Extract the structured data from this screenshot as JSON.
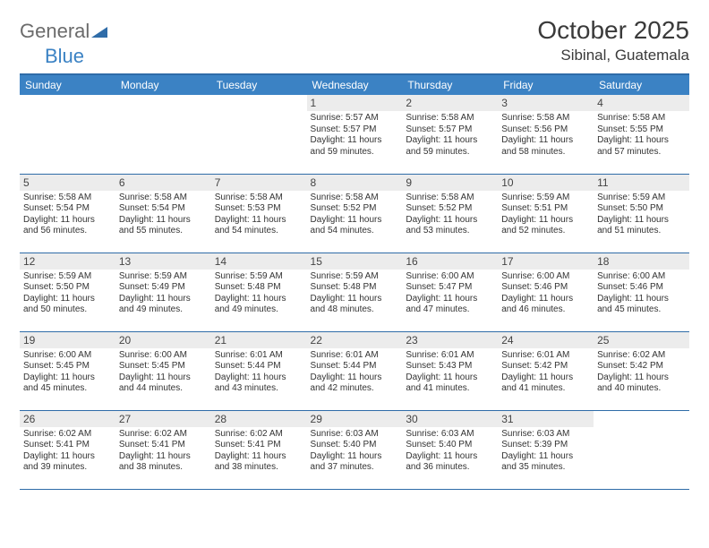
{
  "brand": {
    "part1": "General",
    "part2": "Blue"
  },
  "title": "October 2025",
  "location": "Sibinal, Guatemala",
  "colors": {
    "header_bg": "#3b82c4",
    "header_text": "#ffffff",
    "row_border": "#2f6ca8",
    "daynum_bg": "#ececec",
    "logo_gray": "#6b6b6b",
    "logo_blue": "#3b82c4"
  },
  "weekdays": [
    "Sunday",
    "Monday",
    "Tuesday",
    "Wednesday",
    "Thursday",
    "Friday",
    "Saturday"
  ],
  "weeks": [
    [
      {
        "n": "",
        "sr": "",
        "ss": "",
        "dl": ""
      },
      {
        "n": "",
        "sr": "",
        "ss": "",
        "dl": ""
      },
      {
        "n": "",
        "sr": "",
        "ss": "",
        "dl": ""
      },
      {
        "n": "1",
        "sr": "Sunrise: 5:57 AM",
        "ss": "Sunset: 5:57 PM",
        "dl": "Daylight: 11 hours and 59 minutes."
      },
      {
        "n": "2",
        "sr": "Sunrise: 5:58 AM",
        "ss": "Sunset: 5:57 PM",
        "dl": "Daylight: 11 hours and 59 minutes."
      },
      {
        "n": "3",
        "sr": "Sunrise: 5:58 AM",
        "ss": "Sunset: 5:56 PM",
        "dl": "Daylight: 11 hours and 58 minutes."
      },
      {
        "n": "4",
        "sr": "Sunrise: 5:58 AM",
        "ss": "Sunset: 5:55 PM",
        "dl": "Daylight: 11 hours and 57 minutes."
      }
    ],
    [
      {
        "n": "5",
        "sr": "Sunrise: 5:58 AM",
        "ss": "Sunset: 5:54 PM",
        "dl": "Daylight: 11 hours and 56 minutes."
      },
      {
        "n": "6",
        "sr": "Sunrise: 5:58 AM",
        "ss": "Sunset: 5:54 PM",
        "dl": "Daylight: 11 hours and 55 minutes."
      },
      {
        "n": "7",
        "sr": "Sunrise: 5:58 AM",
        "ss": "Sunset: 5:53 PM",
        "dl": "Daylight: 11 hours and 54 minutes."
      },
      {
        "n": "8",
        "sr": "Sunrise: 5:58 AM",
        "ss": "Sunset: 5:52 PM",
        "dl": "Daylight: 11 hours and 54 minutes."
      },
      {
        "n": "9",
        "sr": "Sunrise: 5:58 AM",
        "ss": "Sunset: 5:52 PM",
        "dl": "Daylight: 11 hours and 53 minutes."
      },
      {
        "n": "10",
        "sr": "Sunrise: 5:59 AM",
        "ss": "Sunset: 5:51 PM",
        "dl": "Daylight: 11 hours and 52 minutes."
      },
      {
        "n": "11",
        "sr": "Sunrise: 5:59 AM",
        "ss": "Sunset: 5:50 PM",
        "dl": "Daylight: 11 hours and 51 minutes."
      }
    ],
    [
      {
        "n": "12",
        "sr": "Sunrise: 5:59 AM",
        "ss": "Sunset: 5:50 PM",
        "dl": "Daylight: 11 hours and 50 minutes."
      },
      {
        "n": "13",
        "sr": "Sunrise: 5:59 AM",
        "ss": "Sunset: 5:49 PM",
        "dl": "Daylight: 11 hours and 49 minutes."
      },
      {
        "n": "14",
        "sr": "Sunrise: 5:59 AM",
        "ss": "Sunset: 5:48 PM",
        "dl": "Daylight: 11 hours and 49 minutes."
      },
      {
        "n": "15",
        "sr": "Sunrise: 5:59 AM",
        "ss": "Sunset: 5:48 PM",
        "dl": "Daylight: 11 hours and 48 minutes."
      },
      {
        "n": "16",
        "sr": "Sunrise: 6:00 AM",
        "ss": "Sunset: 5:47 PM",
        "dl": "Daylight: 11 hours and 47 minutes."
      },
      {
        "n": "17",
        "sr": "Sunrise: 6:00 AM",
        "ss": "Sunset: 5:46 PM",
        "dl": "Daylight: 11 hours and 46 minutes."
      },
      {
        "n": "18",
        "sr": "Sunrise: 6:00 AM",
        "ss": "Sunset: 5:46 PM",
        "dl": "Daylight: 11 hours and 45 minutes."
      }
    ],
    [
      {
        "n": "19",
        "sr": "Sunrise: 6:00 AM",
        "ss": "Sunset: 5:45 PM",
        "dl": "Daylight: 11 hours and 45 minutes."
      },
      {
        "n": "20",
        "sr": "Sunrise: 6:00 AM",
        "ss": "Sunset: 5:45 PM",
        "dl": "Daylight: 11 hours and 44 minutes."
      },
      {
        "n": "21",
        "sr": "Sunrise: 6:01 AM",
        "ss": "Sunset: 5:44 PM",
        "dl": "Daylight: 11 hours and 43 minutes."
      },
      {
        "n": "22",
        "sr": "Sunrise: 6:01 AM",
        "ss": "Sunset: 5:44 PM",
        "dl": "Daylight: 11 hours and 42 minutes."
      },
      {
        "n": "23",
        "sr": "Sunrise: 6:01 AM",
        "ss": "Sunset: 5:43 PM",
        "dl": "Daylight: 11 hours and 41 minutes."
      },
      {
        "n": "24",
        "sr": "Sunrise: 6:01 AM",
        "ss": "Sunset: 5:42 PM",
        "dl": "Daylight: 11 hours and 41 minutes."
      },
      {
        "n": "25",
        "sr": "Sunrise: 6:02 AM",
        "ss": "Sunset: 5:42 PM",
        "dl": "Daylight: 11 hours and 40 minutes."
      }
    ],
    [
      {
        "n": "26",
        "sr": "Sunrise: 6:02 AM",
        "ss": "Sunset: 5:41 PM",
        "dl": "Daylight: 11 hours and 39 minutes."
      },
      {
        "n": "27",
        "sr": "Sunrise: 6:02 AM",
        "ss": "Sunset: 5:41 PM",
        "dl": "Daylight: 11 hours and 38 minutes."
      },
      {
        "n": "28",
        "sr": "Sunrise: 6:02 AM",
        "ss": "Sunset: 5:41 PM",
        "dl": "Daylight: 11 hours and 38 minutes."
      },
      {
        "n": "29",
        "sr": "Sunrise: 6:03 AM",
        "ss": "Sunset: 5:40 PM",
        "dl": "Daylight: 11 hours and 37 minutes."
      },
      {
        "n": "30",
        "sr": "Sunrise: 6:03 AM",
        "ss": "Sunset: 5:40 PM",
        "dl": "Daylight: 11 hours and 36 minutes."
      },
      {
        "n": "31",
        "sr": "Sunrise: 6:03 AM",
        "ss": "Sunset: 5:39 PM",
        "dl": "Daylight: 11 hours and 35 minutes."
      },
      {
        "n": "",
        "sr": "",
        "ss": "",
        "dl": ""
      }
    ]
  ]
}
